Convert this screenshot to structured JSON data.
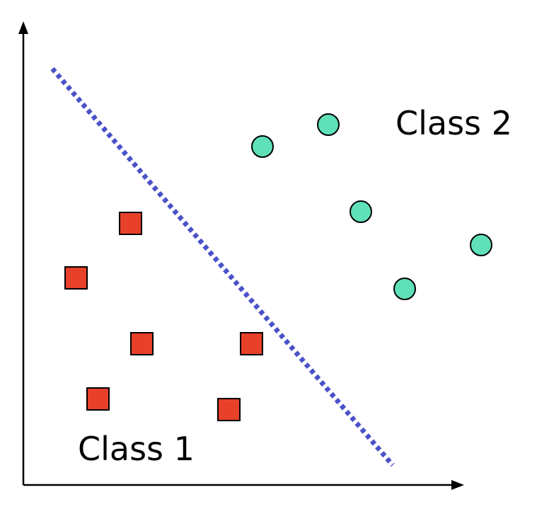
{
  "diagram": {
    "labels": {
      "class_1": "Class 1",
      "class_2": "Class 2"
    }
  },
  "colors": {
    "class_1_fill": "#e8412a",
    "class_2_fill": "#5fe0b8",
    "boundary": "#4a52c8",
    "axis": "#000000"
  },
  "marker_counts": {
    "class_1_squares": 6,
    "class_2_circles": 5
  }
}
